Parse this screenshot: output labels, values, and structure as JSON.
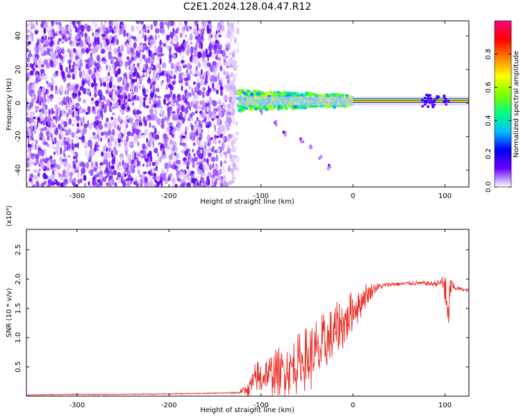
{
  "title": "C2E1.2024.128.04.47.R12",
  "chart_data": [
    {
      "type": "heatmap",
      "xlabel": "Height of straight line (km)",
      "ylabel": "Frequency (Hz)",
      "xlim": [
        -355,
        126
      ],
      "ylim": [
        -50,
        49
      ],
      "xticks": [
        -300,
        -200,
        -100,
        0,
        100
      ],
      "yticks": [
        -40,
        -20,
        0,
        20,
        40
      ],
      "colorbar": {
        "label": "Normalized spectral amplitude",
        "range": [
          0.0,
          1.0
        ],
        "ticks": [
          0.0,
          0.2,
          0.4,
          0.6,
          0.8
        ],
        "colormap": [
          "#ffffff",
          "#6a00ff",
          "#0000ff",
          "#00bfff",
          "#00ff80",
          "#80ff00",
          "#ffff00",
          "#ff8000",
          "#ff0000",
          "#ff0080"
        ]
      },
      "features": {
        "noise_region_x": [
          -355,
          -125
        ],
        "carrier_line_freq_hz": 1.5,
        "carrier_start_x": -125,
        "descending_trace": [
          [
            -100,
            -5
          ],
          [
            -85,
            -12
          ],
          [
            -75,
            -18
          ],
          [
            -55,
            -22
          ],
          [
            -45,
            -26
          ],
          [
            -35,
            -32
          ],
          [
            -25,
            -38
          ]
        ]
      }
    },
    {
      "type": "line",
      "xlabel": "Height of straight line (km)",
      "ylabel": "SNR (10 * v/v)",
      "y_multiplier": "(x10⁴)",
      "xlim": [
        -355,
        126
      ],
      "ylim": [
        0,
        2.85
      ],
      "xticks": [
        -300,
        -200,
        -100,
        0,
        100
      ],
      "yticks": [
        0.5,
        1.0,
        1.5,
        2.0,
        2.5
      ],
      "color": "#e8302a",
      "series": [
        {
          "x": [
            -355,
            -300,
            -250,
            -200,
            -150,
            -125,
            -115,
            -105,
            -95,
            -85,
            -75,
            -65,
            -55,
            -45,
            -35,
            -25,
            -15,
            -5,
            5,
            15,
            25,
            35,
            45,
            55,
            65,
            75,
            85,
            95,
            100,
            103,
            106,
            110,
            115,
            120,
            126
          ],
          "y": [
            0.02,
            0.03,
            0.03,
            0.04,
            0.05,
            0.06,
            0.12,
            0.28,
            0.35,
            0.4,
            0.45,
            0.5,
            0.6,
            0.68,
            0.8,
            0.95,
            1.15,
            1.35,
            1.55,
            1.75,
            1.85,
            1.9,
            1.92,
            1.92,
            1.93,
            1.93,
            1.92,
            1.93,
            1.95,
            1.2,
            1.88,
            1.85,
            1.84,
            1.82,
            1.8
          ],
          "spread": [
            0.01,
            0.01,
            0.01,
            0.01,
            0.01,
            0.02,
            0.12,
            0.35,
            0.35,
            0.4,
            0.45,
            0.5,
            0.55,
            0.6,
            0.6,
            0.55,
            0.5,
            0.4,
            0.35,
            0.2,
            0.08,
            0.04,
            0.04,
            0.04,
            0.04,
            0.04,
            0.05,
            0.06,
            0.45,
            0.5,
            0.25,
            0.05,
            0.04,
            0.03,
            0.03
          ]
        }
      ]
    }
  ]
}
